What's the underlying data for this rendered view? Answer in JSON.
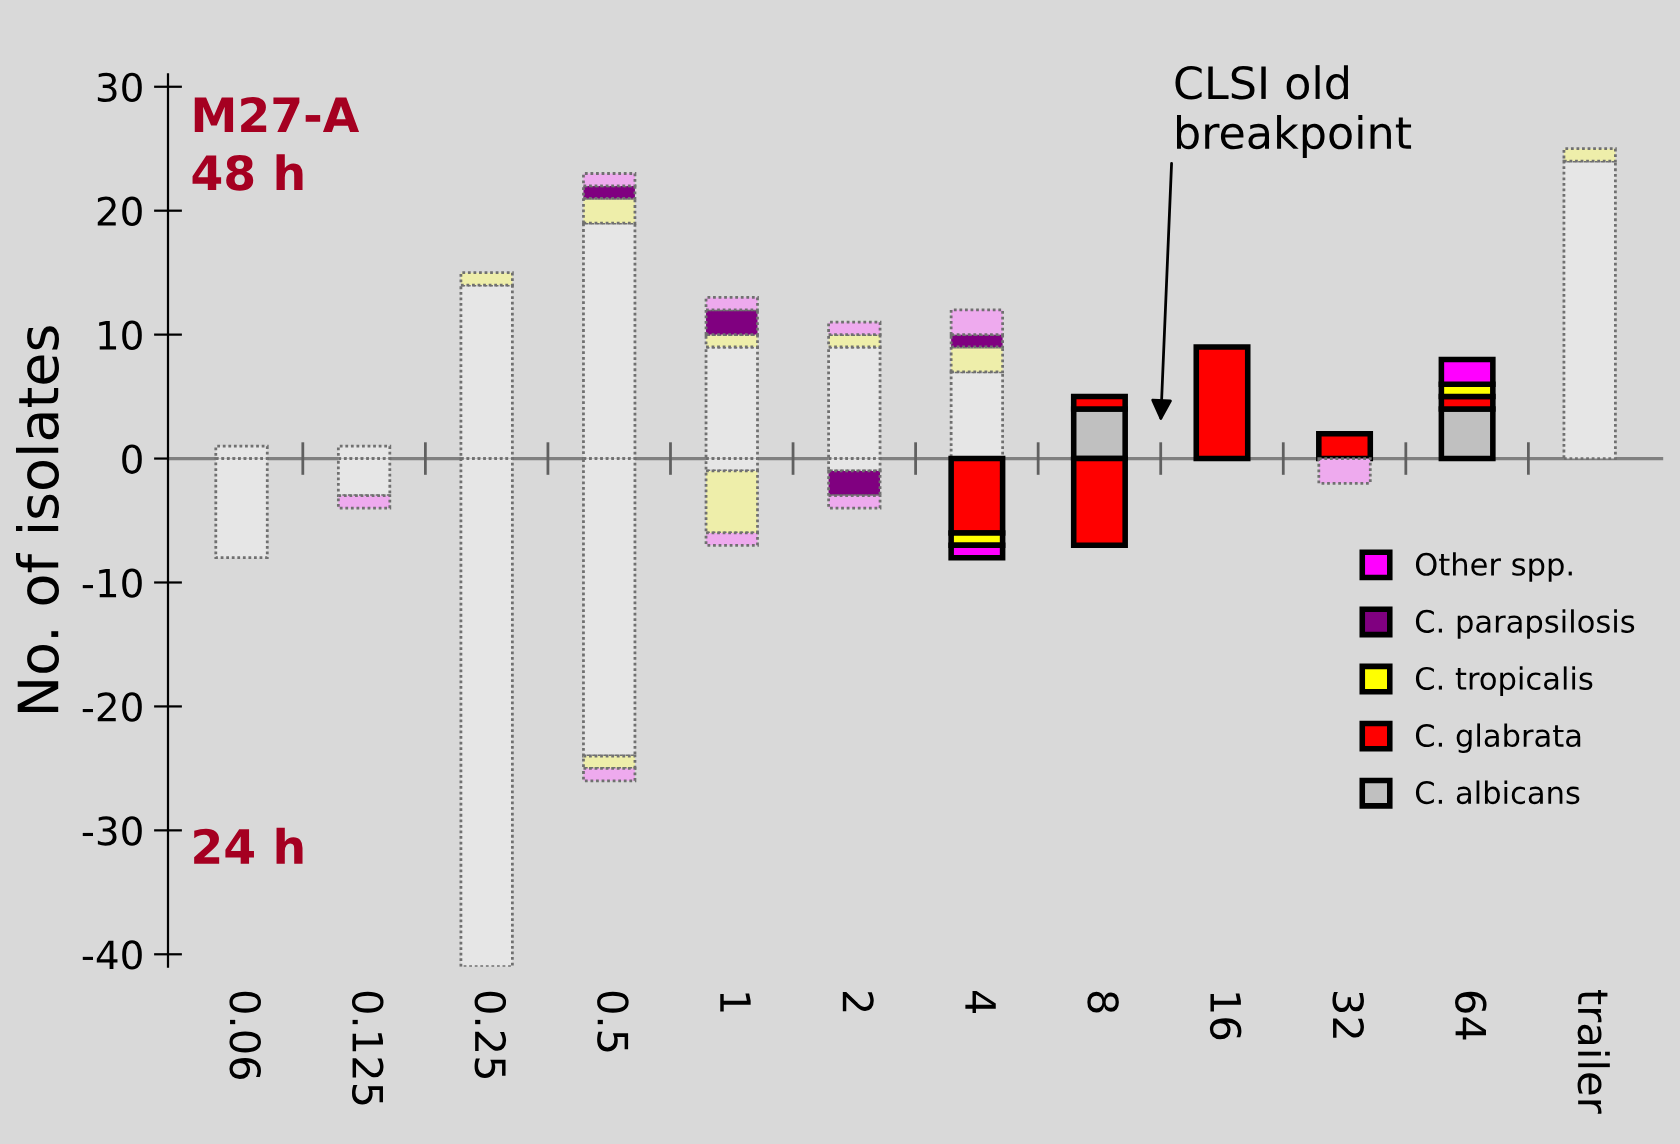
{
  "chart_data": {
    "type": "bar",
    "stacked": true,
    "ylabel": "No. of isolates",
    "categories": [
      "0.06",
      "0.125",
      "0.25",
      "0.5",
      "1",
      "2",
      "4",
      "8",
      "16",
      "32",
      "64",
      "trailer"
    ],
    "series": [
      {
        "name": "C. albicans",
        "color": "#c0c0c0",
        "values": [
          1,
          1,
          14,
          19,
          9,
          9,
          7,
          4,
          null,
          null,
          4,
          24
        ],
        "colors": [
          "#e6e6e6",
          "#e6e6e6",
          "#e6e6e6",
          "#e6e6e6",
          "#e6e6e6",
          "#e6e6e6",
          "#e6e6e6",
          "#c0c0c0",
          "#c0c0c0",
          "#c0c0c0",
          "#c0c0c0",
          "#e6e6e6"
        ]
      },
      {
        "name": "C. glabrata",
        "color": "#ff0000",
        "values": [
          null,
          null,
          null,
          null,
          null,
          null,
          null,
          1,
          9,
          2,
          1,
          null
        ],
        "colors": [
          "#f4b0b0",
          "#f4b0b0",
          "#f4b0b0",
          "#f4b0b0",
          "#f4b0b0",
          "#f4b0b0",
          "#f4b0b0",
          "#ff0000",
          "#ff0000",
          "#ff0000",
          "#ff0000",
          "#f4b0b0"
        ]
      },
      {
        "name": "C. tropicalis",
        "color": "#ffff00",
        "values": [
          null,
          null,
          1,
          2,
          1,
          1,
          2,
          null,
          null,
          null,
          1,
          1
        ],
        "colors": [
          "#eeeeaa",
          "#eeeeaa",
          "#eeeeaa",
          "#eeeeaa",
          "#eeeeaa",
          "#eeeeaa",
          "#eeeeaa",
          "#ffff00",
          "#ffff00",
          "#ffff00",
          "#ffff00",
          "#eeeeaa"
        ]
      },
      {
        "name": "C. parapsilosis",
        "color": "#800080",
        "values": [
          null,
          null,
          null,
          1,
          2,
          null,
          1,
          null,
          null,
          null,
          null,
          null
        ],
        "colors": [
          "#800080",
          "#800080",
          "#800080",
          "#800080",
          "#800080",
          "#800080",
          "#800080",
          "#800080",
          "#800080",
          "#800080",
          "#800080",
          "#800080"
        ]
      },
      {
        "name": "Other spp.",
        "color": "#ff00ff",
        "values": [
          null,
          null,
          null,
          1,
          1,
          1,
          2,
          null,
          null,
          null,
          2,
          null
        ],
        "colors": [
          "#eeaaee",
          "#eeaaee",
          "#eeaaee",
          "#eeaaee",
          "#eeaaee",
          "#eeaaee",
          "#eeaaee",
          "#ff00ff",
          "#ff00ff",
          "#ff00ff",
          "#ff00ff",
          "#eeaaee"
        ]
      },
      {
        "color": "#c0c0c0",
        "values": [
          -8,
          -3,
          -41,
          -24,
          -1,
          -1,
          null,
          null,
          null,
          null,
          null,
          null
        ],
        "colors": [
          "#e6e6e6",
          "#e6e6e6",
          "#e6e6e6",
          "#e6e6e6",
          "#e6e6e6",
          "#e6e6e6",
          "#c0c0c0",
          "#c0c0c0",
          "#c0c0c0",
          "#e6e6e6",
          "#c0c0c0",
          "#c0c0c0"
        ]
      },
      {
        "color": "#ff0000",
        "values": [
          null,
          null,
          null,
          null,
          null,
          null,
          -6,
          -7,
          null,
          null,
          null,
          null
        ],
        "colors": [
          "#f4b0b0",
          "#f4b0b0",
          "#f4b0b0",
          "#f4b0b0",
          "#f4b0b0",
          "#f4b0b0",
          "#ff0000",
          "#ff0000",
          "#ff0000",
          "#f4b0b0",
          "#ff0000",
          "#ff0000"
        ]
      },
      {
        "color": "#ffff00",
        "values": [
          null,
          null,
          null,
          -1,
          -5,
          null,
          -1,
          null,
          null,
          null,
          null,
          null
        ],
        "colors": [
          "#eeeeaa",
          "#eeeeaa",
          "#eeeeaa",
          "#eeeeaa",
          "#eeeeaa",
          "#eeeeaa",
          "#ffff00",
          "#ffff00",
          "#ffff00",
          "#eeeeaa",
          "#ffff00",
          "#ffff00"
        ]
      },
      {
        "color": "#800080",
        "values": [
          null,
          null,
          null,
          null,
          null,
          -2,
          null,
          null,
          null,
          null,
          null,
          null
        ],
        "colors": [
          "#800080",
          "#800080",
          "#800080",
          "#800080",
          "#800080",
          "#800080",
          "#800080",
          "#800080",
          "#800080",
          "#800080",
          "#800080",
          "#800080"
        ]
      },
      {
        "color": "#ff00ff",
        "values": [
          null,
          -1,
          null,
          -1,
          -1,
          -1,
          -1,
          null,
          null,
          -2,
          null,
          null
        ],
        "colors": [
          "#eeaaee",
          "#eeaaee",
          "#eeaaee",
          "#eeaaee",
          "#eeaaee",
          "#eeaaee",
          "#ff00ff",
          "#ff00ff",
          "#ff00ff",
          "#eeaaee",
          "#ff00ff",
          "#ff00ff"
        ]
      }
    ],
    "ylim": [
      -41,
      31
    ],
    "yticks": [
      -40,
      -30,
      -20,
      -10,
      0,
      10,
      20,
      30
    ],
    "ref_lines": [
      {
        "axis": "y",
        "value": 0,
        "color": "#808080"
      }
    ],
    "grid": false,
    "legend": "right",
    "annotations": [
      "M27-A",
      "48 h",
      "24 h",
      "CLSI old\nbreakpoint"
    ]
  }
}
